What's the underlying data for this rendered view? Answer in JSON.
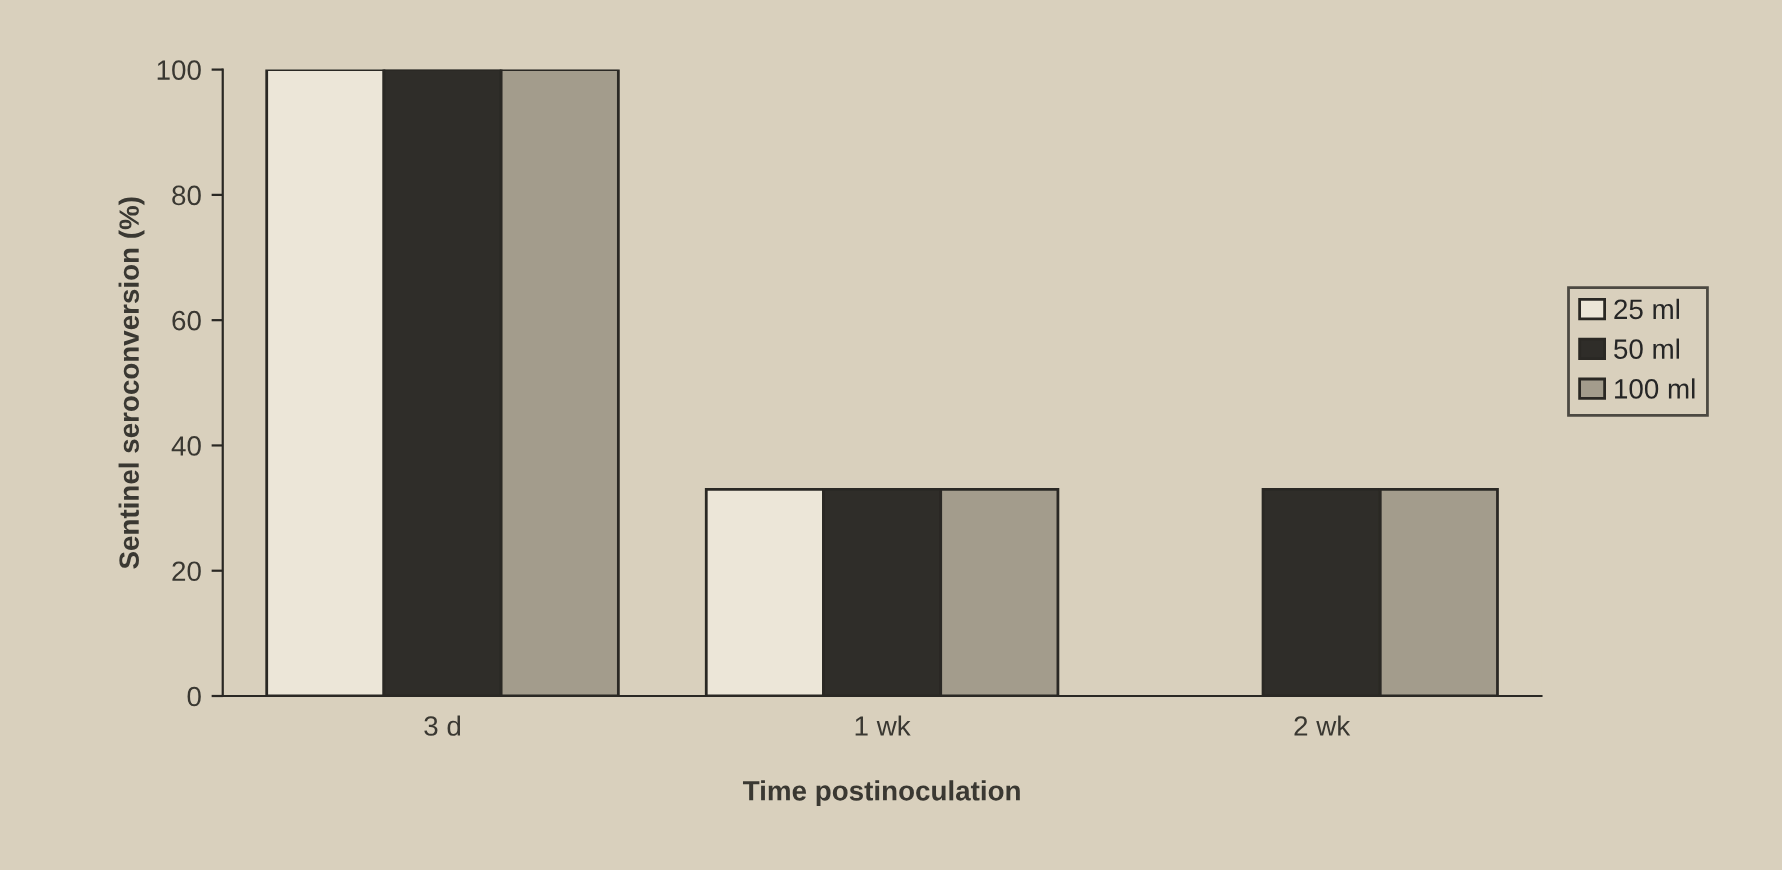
{
  "chart_data": {
    "type": "bar",
    "xlabel": "Time postinoculation",
    "ylabel": "Sentinel seroconversion (%)",
    "categories": [
      "3 d",
      "1 wk",
      "2 wk"
    ],
    "series": [
      {
        "name": "25 ml",
        "color": "#ece6d8",
        "values": [
          100,
          33,
          null
        ]
      },
      {
        "name": "50 ml",
        "color": "#2f2d29",
        "values": [
          100,
          33,
          33
        ]
      },
      {
        "name": "100 ml",
        "color": "#a39c8c",
        "values": [
          100,
          33,
          33
        ]
      }
    ],
    "ylim": [
      0,
      100
    ],
    "yticks": [
      0,
      20,
      40,
      60,
      80,
      100
    ],
    "grid": false,
    "legend": "right"
  }
}
